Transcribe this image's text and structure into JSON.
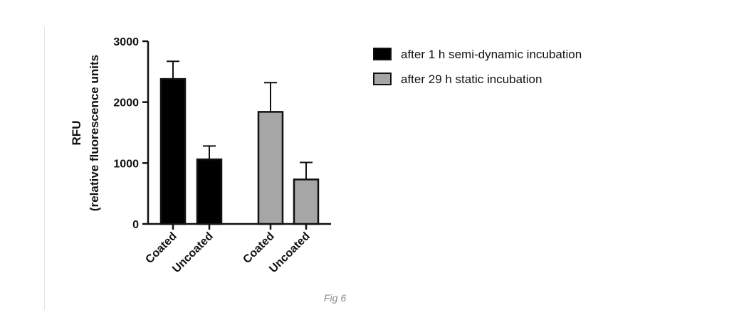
{
  "caption": "Fig 6",
  "chart_data": {
    "type": "bar",
    "title": "",
    "ylabel_line1": "RFU",
    "ylabel_line2": "(relative fluorescence units",
    "xlabel": "",
    "ylim": [
      0,
      3000
    ],
    "yticks": [
      0,
      1000,
      2000,
      3000
    ],
    "bars": [
      {
        "label": "Coated",
        "series": "after 1 h semi-dynamic incubation",
        "value": 2380,
        "error": 290
      },
      {
        "label": "Uncoated",
        "series": "after 1 h semi-dynamic incubation",
        "value": 1060,
        "error": 220
      },
      {
        "label": "Coated",
        "series": "after 29 h static incubation",
        "value": 1840,
        "error": 480
      },
      {
        "label": "Uncoated",
        "series": "after 29 h static incubation",
        "value": 730,
        "error": 280
      }
    ],
    "series": [
      {
        "name": "after 1 h semi-dynamic incubation",
        "color": "#000000"
      },
      {
        "name": "after 29 h static incubation",
        "color": "#a6a6a6"
      }
    ],
    "legend_position": "right"
  }
}
